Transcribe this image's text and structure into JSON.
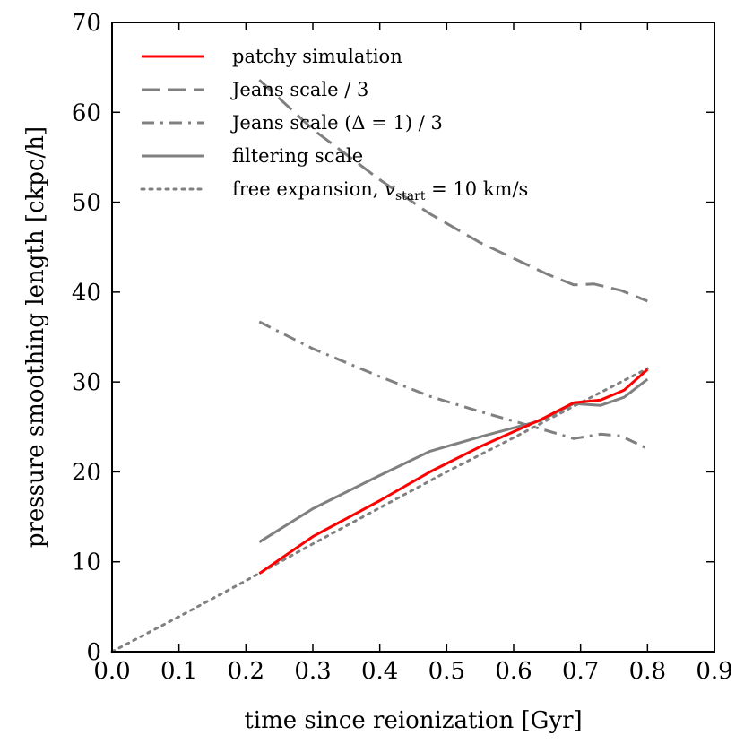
{
  "chart_data": {
    "type": "line",
    "xlabel": "time since reionization [Gyr]",
    "ylabel": "pressure smoothing length [ckpc/h]",
    "xlim": [
      0.0,
      0.9
    ],
    "ylim": [
      0,
      70
    ],
    "xticks": [
      "0.0",
      "0.1",
      "0.2",
      "0.3",
      "0.4",
      "0.5",
      "0.6",
      "0.7",
      "0.8",
      "0.9"
    ],
    "yticks": [
      "0",
      "10",
      "20",
      "30",
      "40",
      "50",
      "60",
      "70"
    ],
    "grid": false,
    "legend_position": "top-left",
    "series": [
      {
        "name": "patchy simulation",
        "color": "#ff0000",
        "style": "solid",
        "x": [
          0.22,
          0.3,
          0.4,
          0.475,
          0.55,
          0.64,
          0.69,
          0.73,
          0.765,
          0.8
        ],
        "y": [
          8.7,
          12.8,
          16.8,
          20.0,
          22.8,
          25.8,
          27.7,
          28.0,
          29.1,
          31.4
        ]
      },
      {
        "name": "Jeans scale / 3",
        "color": "#808080",
        "style": "dashed",
        "x": [
          0.22,
          0.3,
          0.4,
          0.475,
          0.55,
          0.65,
          0.69,
          0.72,
          0.76,
          0.8
        ],
        "y": [
          63.6,
          58.1,
          52.5,
          48.7,
          45.5,
          42.0,
          40.8,
          40.9,
          40.2,
          39.0
        ]
      },
      {
        "name": "Jeans scale (Δ = 1) / 3",
        "color": "#808080",
        "style": "dashdot",
        "x": [
          0.22,
          0.3,
          0.4,
          0.475,
          0.55,
          0.64,
          0.69,
          0.73,
          0.76,
          0.8
        ],
        "y": [
          36.7,
          33.7,
          30.6,
          28.4,
          26.7,
          24.8,
          23.7,
          24.2,
          24.0,
          22.6
        ]
      },
      {
        "name": "filtering scale",
        "color": "#808080",
        "style": "solid",
        "x": [
          0.22,
          0.3,
          0.4,
          0.475,
          0.55,
          0.64,
          0.69,
          0.73,
          0.765,
          0.8
        ],
        "y": [
          12.2,
          15.9,
          19.6,
          22.3,
          23.9,
          25.7,
          27.6,
          27.4,
          28.3,
          30.3
        ]
      },
      {
        "name": "free expansion, ",
        "name_math": "v",
        "name_sub": "start",
        "name_tail": " = 10 km/s",
        "color": "#808080",
        "style": "dotted",
        "x": [
          0.0,
          0.1,
          0.2,
          0.3,
          0.4,
          0.5,
          0.6,
          0.7,
          0.8
        ],
        "y": [
          0.0,
          3.9,
          7.9,
          12.0,
          16.0,
          20.0,
          23.8,
          27.7,
          31.5
        ]
      }
    ]
  }
}
